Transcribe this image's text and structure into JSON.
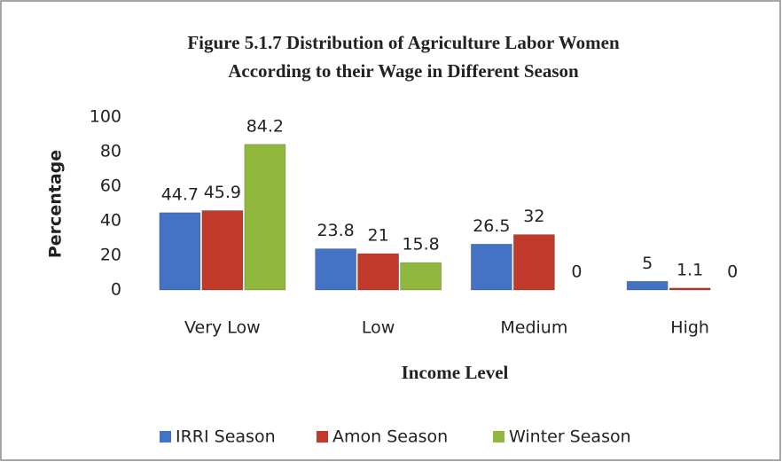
{
  "chart_data": {
    "type": "bar",
    "title": [
      "Figure 5.1.7  Distribution of Agriculture Labor Women",
      "According to their Wage in Different Season"
    ],
    "x_label": "Income Level",
    "y_label": "Percentage",
    "categories": [
      "Very Low",
      "Low",
      "Medium",
      "High"
    ],
    "series": [
      {
        "name": "IRRI Season",
        "color": "#4472c4",
        "values": [
          44.7,
          23.8,
          26.5,
          5
        ]
      },
      {
        "name": "Amon Season",
        "color": "#c0392b",
        "values": [
          45.9,
          21,
          32,
          1.1
        ]
      },
      {
        "name": "Winter Season",
        "color": "#8fb83c",
        "values": [
          84.2,
          15.8,
          0,
          0
        ]
      }
    ],
    "ylim": [
      0,
      100
    ],
    "yticks": [
      0,
      20,
      40,
      60,
      80,
      100
    ],
    "grid": false,
    "legend": "bottom"
  }
}
